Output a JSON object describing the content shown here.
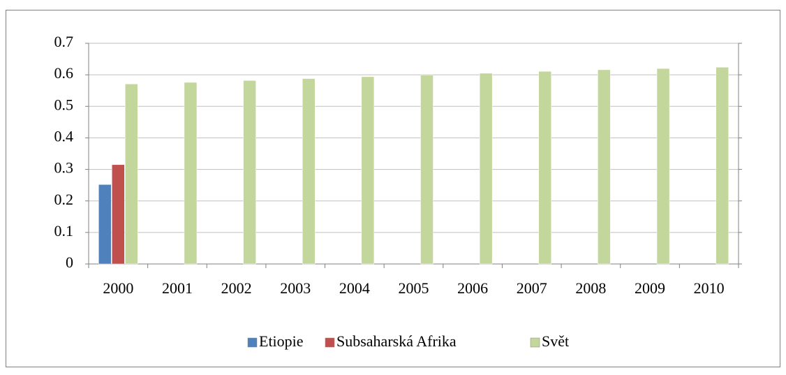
{
  "chart_data": {
    "type": "bar",
    "categories": [
      "2000",
      "2001",
      "2002",
      "2003",
      "2004",
      "2005",
      "2006",
      "2007",
      "2008",
      "2009",
      "2010"
    ],
    "series": [
      {
        "name": "Etiopie",
        "color": "#4f81bd",
        "values": [
          0.252,
          null,
          null,
          null,
          null,
          null,
          null,
          null,
          null,
          null,
          null
        ]
      },
      {
        "name": "Subsaharská Afrika",
        "color": "#c0504d",
        "values": [
          0.315,
          null,
          null,
          null,
          null,
          null,
          null,
          null,
          null,
          null,
          null
        ]
      },
      {
        "name": "Svět",
        "color": "#c3d69b",
        "values": [
          0.571,
          0.576,
          0.582,
          0.588,
          0.594,
          0.599,
          0.605,
          0.611,
          0.616,
          0.62,
          0.624
        ]
      }
    ],
    "ylim": [
      0,
      0.7
    ],
    "yticks": [
      0,
      0.1,
      0.2,
      0.3,
      0.4,
      0.5,
      0.6,
      0.7
    ],
    "grid": true,
    "legend": "bottom"
  }
}
